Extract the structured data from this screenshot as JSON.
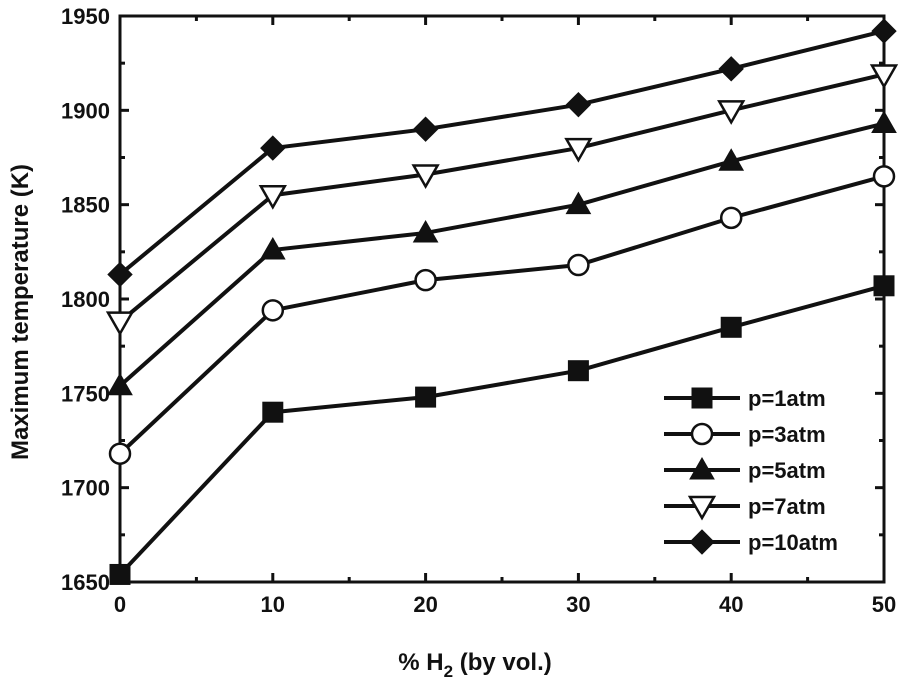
{
  "chart_data": {
    "type": "line",
    "title": "",
    "xlabel_prefix": "% H",
    "xlabel_subscript": "2",
    "xlabel_suffix": " (by vol.)",
    "ylabel": "Maximum temperature (K)",
    "x": [
      0,
      10,
      20,
      30,
      40,
      50
    ],
    "xlim": [
      0,
      50
    ],
    "ylim": [
      1650,
      1950
    ],
    "xticks": [
      "0",
      "10",
      "20",
      "30",
      "40",
      "50"
    ],
    "yticks": [
      "1650",
      "1700",
      "1750",
      "1800",
      "1850",
      "1900",
      "1950"
    ],
    "grid": false,
    "legend_position": "bottom-right",
    "series": [
      {
        "name": "p=1atm",
        "marker": "filled-square",
        "values": [
          1654,
          1740,
          1748,
          1762,
          1785,
          1807
        ]
      },
      {
        "name": "p=3atm",
        "marker": "open-circle",
        "values": [
          1718,
          1794,
          1810,
          1818,
          1843,
          1865
        ]
      },
      {
        "name": "p=5atm",
        "marker": "filled-triangle-up",
        "values": [
          1754,
          1826,
          1835,
          1850,
          1873,
          1893
        ]
      },
      {
        "name": "p=7atm",
        "marker": "open-triangle-down",
        "values": [
          1788,
          1855,
          1866,
          1880,
          1900,
          1919
        ]
      },
      {
        "name": "p=10atm",
        "marker": "filled-diamond",
        "values": [
          1813,
          1880,
          1890,
          1903,
          1922,
          1942
        ]
      }
    ],
    "colors": {
      "line": "#111111",
      "background": "#ffffff"
    }
  }
}
